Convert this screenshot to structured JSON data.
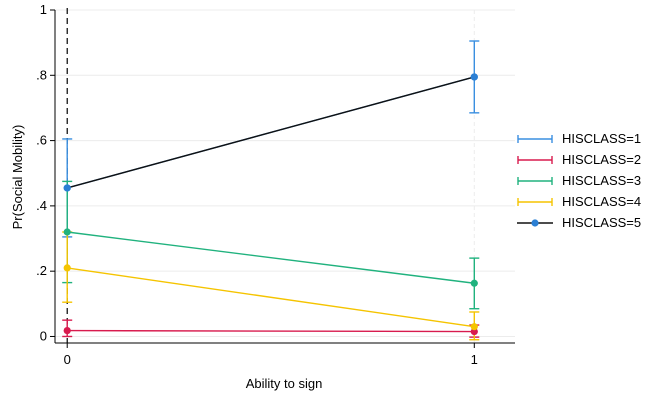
{
  "chart_data": {
    "type": "line",
    "title": "",
    "xlabel": "Ability to sign",
    "ylabel": "Pr(Social Mobility)",
    "x": [
      0,
      1
    ],
    "x_ticks": [
      0,
      1
    ],
    "x_tick_labels": [
      "0",
      "1"
    ],
    "xlim": [
      -0.03,
      1.1
    ],
    "ylim": [
      -0.02,
      1.0
    ],
    "y_ticks": [
      0,
      0.2,
      0.4,
      0.6,
      0.8,
      1
    ],
    "y_tick_labels": [
      "0",
      ".2",
      ".4",
      ".6",
      ".8",
      "1"
    ],
    "grid": true,
    "reference_line_x": 0,
    "legend_position": "right",
    "series": [
      {
        "name": "HISCLASS=1",
        "color": "#3a8fe0",
        "values": [
          0.455,
          0.795
        ],
        "ci_low": [
          0.305,
          0.685
        ],
        "ci_high": [
          0.605,
          0.905
        ],
        "marker": "cap"
      },
      {
        "name": "HISCLASS=2",
        "color": "#d81b4e",
        "values": [
          0.018,
          0.015
        ],
        "ci_low": [
          0.0,
          -0.002
        ],
        "ci_high": [
          0.05,
          0.035
        ],
        "marker": "cap"
      },
      {
        "name": "HISCLASS=3",
        "color": "#20b27e",
        "values": [
          0.32,
          0.163
        ],
        "ci_low": [
          0.165,
          0.085
        ],
        "ci_high": [
          0.475,
          0.24
        ],
        "marker": "cap"
      },
      {
        "name": "HISCLASS=4",
        "color": "#f5c400",
        "values": [
          0.21,
          0.03
        ],
        "ci_low": [
          0.105,
          -0.01
        ],
        "ci_high": [
          0.32,
          0.075
        ],
        "marker": "cap"
      },
      {
        "name": "HISCLASS=5",
        "color": "#111111",
        "values": [
          0.455,
          0.795
        ],
        "marker": "dot",
        "marker_color": "#2b7fd4"
      }
    ]
  }
}
